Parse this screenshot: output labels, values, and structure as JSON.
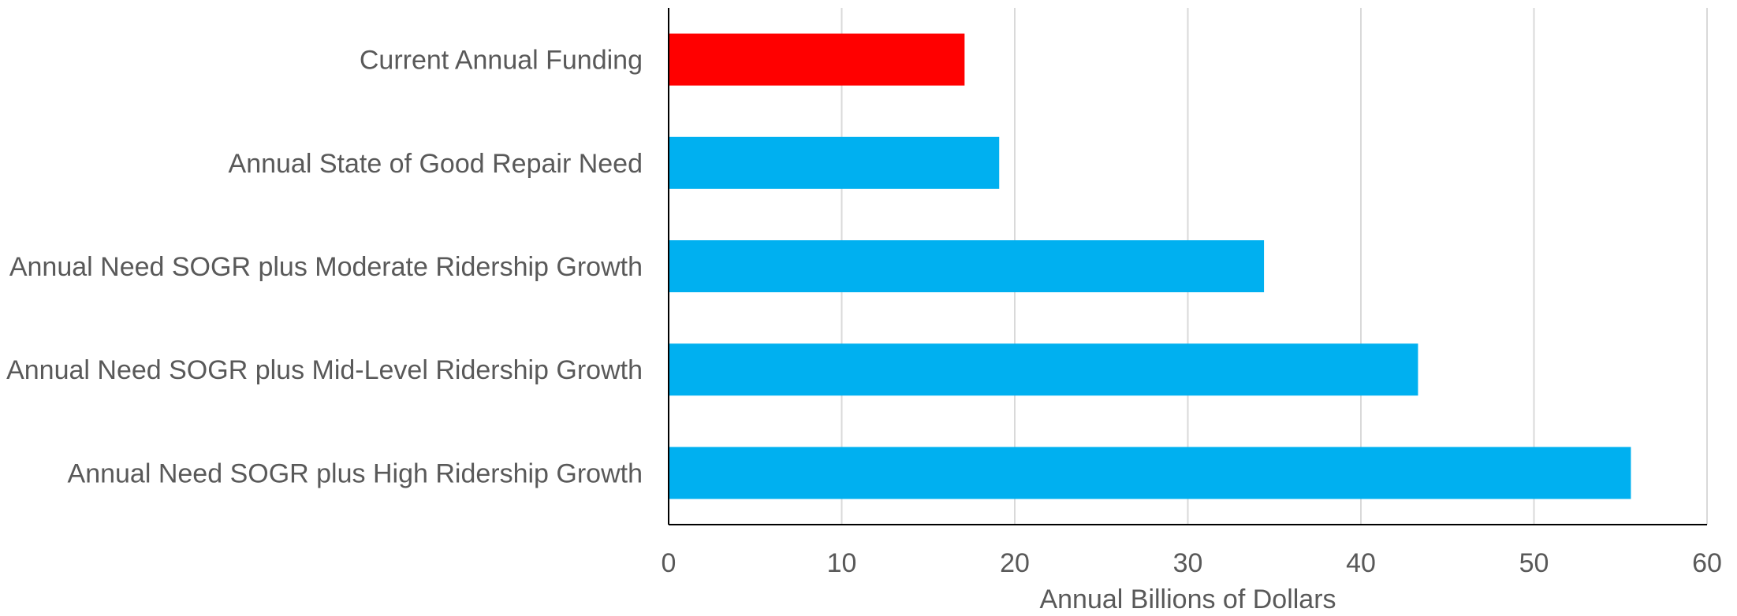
{
  "chart_data": {
    "type": "bar",
    "orientation": "horizontal",
    "categories": [
      "Current Annual Funding",
      "Annual State of Good Repair Need",
      "Annual Need SOGR plus Moderate Ridership Growth",
      "Annual Need SOGR plus Mid-Level Ridership Growth",
      "Annual Need SOGR plus High Ridership Growth"
    ],
    "values": [
      17.1,
      19.1,
      34.4,
      43.3,
      55.6
    ],
    "colors": [
      "#ff0000",
      "#00b0f0",
      "#00b0f0",
      "#00b0f0",
      "#00b0f0"
    ],
    "xlabel": "Annual Billions of Dollars",
    "xlim": [
      0,
      60
    ],
    "xticks": [
      0,
      10,
      20,
      30,
      40,
      50,
      60
    ],
    "grid": "vertical",
    "legend": "none"
  }
}
